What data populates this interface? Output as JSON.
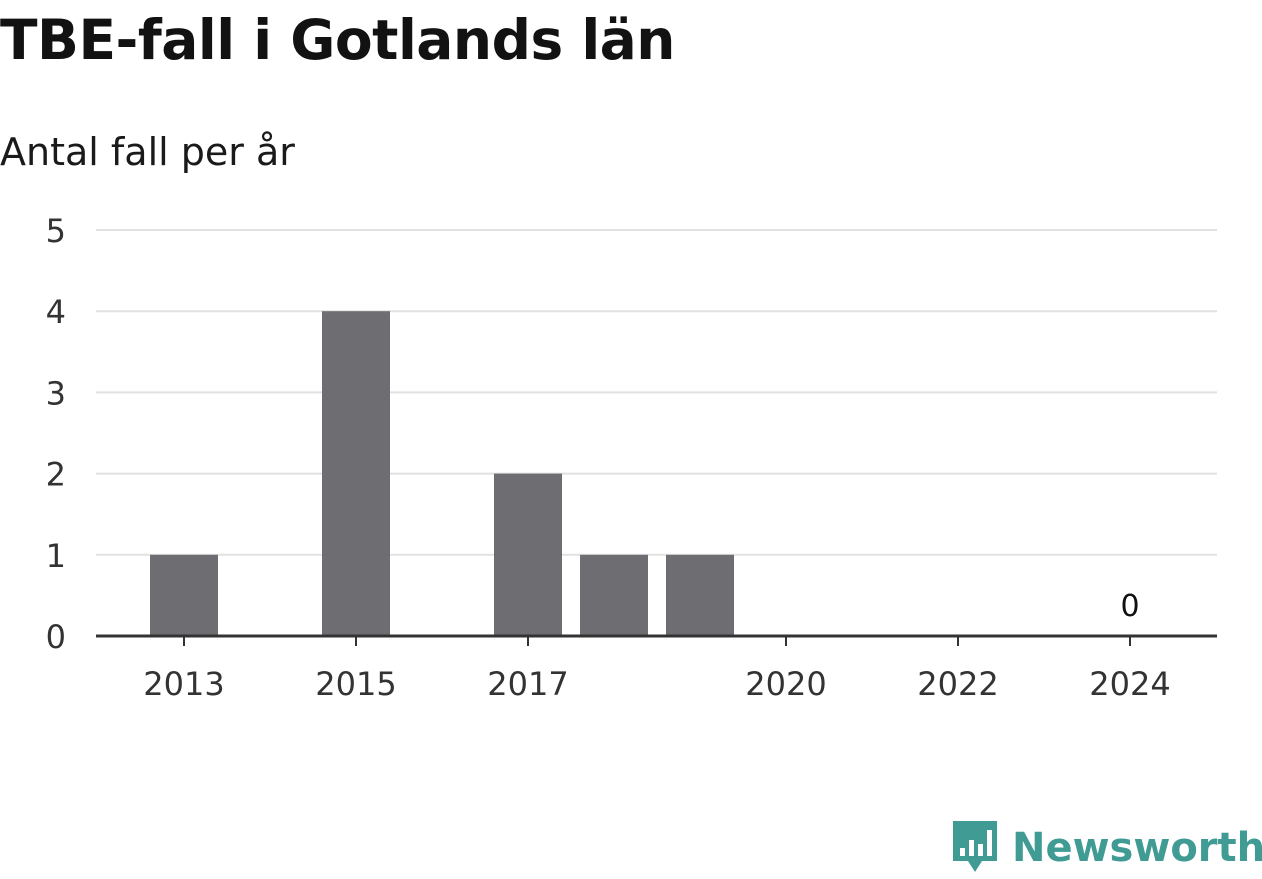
{
  "colors": {
    "bar": "#6e6d72",
    "grid": "#e1e1e1",
    "axis": "#333333",
    "brand": "#3f9b94"
  },
  "brand": {
    "name": "Newsworthy",
    "icon": "bar-chart-speech-bubble-icon"
  },
  "chart_data": {
    "type": "bar",
    "title": "TBE-fall i Gotlands län",
    "subtitle": "Antal fall per år",
    "xlabel": "",
    "ylabel": "",
    "x": [
      2013,
      2014,
      2015,
      2016,
      2017,
      2018,
      2019,
      2020,
      2021,
      2022,
      2023,
      2024
    ],
    "values": [
      1,
      0,
      4,
      0,
      2,
      1,
      1,
      0,
      0,
      0,
      0,
      0
    ],
    "x_tick_labels": [
      "2013",
      "2015",
      "2017",
      "2020",
      "2022",
      "2024"
    ],
    "ylim": [
      0,
      5
    ],
    "y_ticks": [
      0,
      1,
      2,
      3,
      4,
      5
    ],
    "data_labels": [
      {
        "x": 2024,
        "text": "0"
      }
    ],
    "grid": true,
    "legend": "none"
  }
}
